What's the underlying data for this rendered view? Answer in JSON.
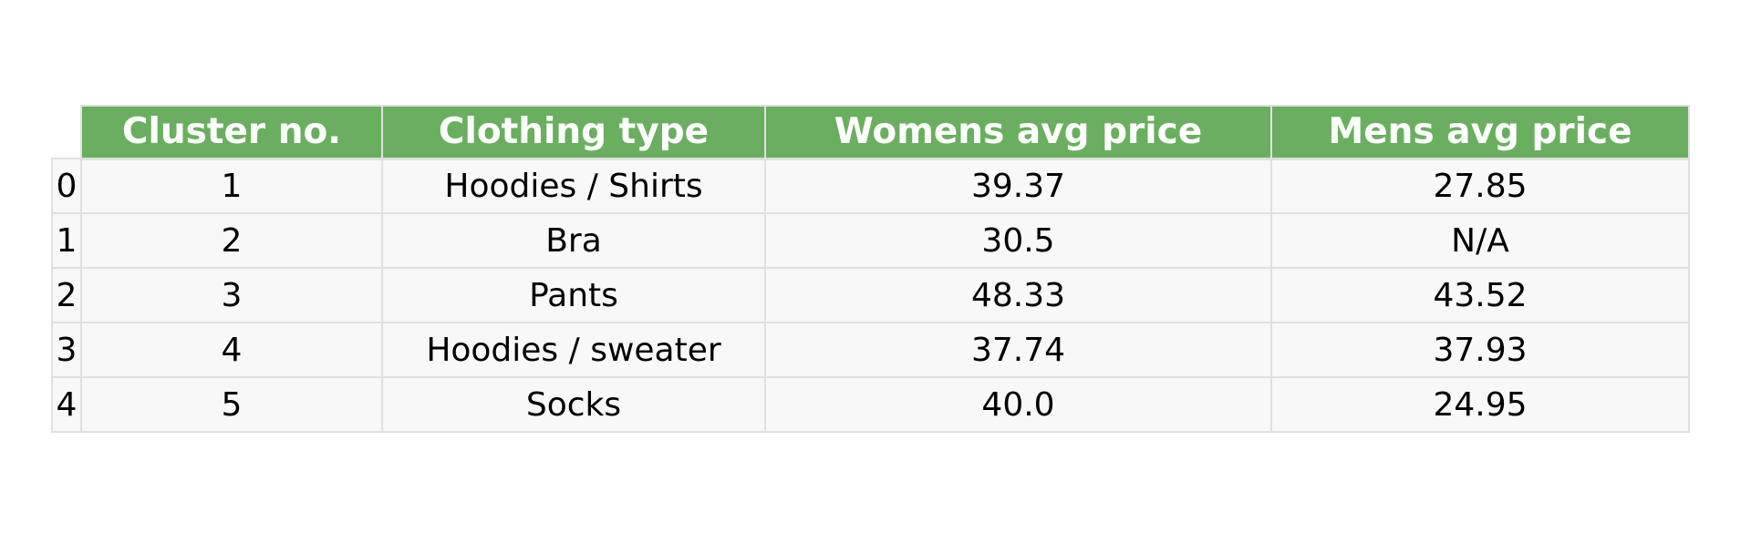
{
  "chart_data": {
    "type": "table",
    "columns": [
      "Cluster no.",
      "Clothing type",
      "Womens avg price",
      "Mens avg price"
    ],
    "index": [
      "0",
      "1",
      "2",
      "3",
      "4"
    ],
    "rows": [
      [
        "1",
        "Hoodies / Shirts",
        "39.37",
        "27.85"
      ],
      [
        "2",
        "Bra",
        "30.5",
        "N/A"
      ],
      [
        "3",
        "Pants",
        "48.33",
        "43.52"
      ],
      [
        "4",
        "Hoodies / sweater",
        "37.74",
        "37.93"
      ],
      [
        "5",
        "Socks",
        "40.0",
        "24.95"
      ]
    ]
  },
  "colors": {
    "header_background": "#6aaf5f",
    "header_text": "#ffffff",
    "cell_background": "#f8f8f8",
    "grid": "#e0e0e0"
  }
}
